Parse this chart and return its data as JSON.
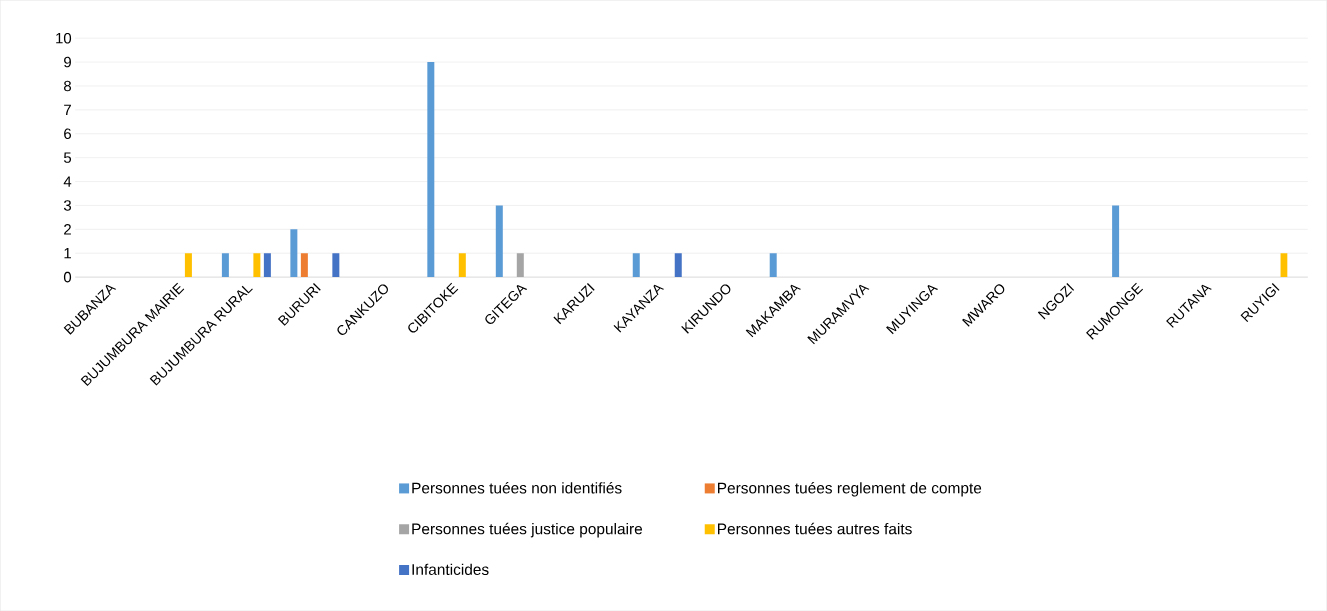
{
  "chart_data": {
    "type": "bar",
    "categories": [
      "BUBANZA",
      "BUJUMBURA MAIRIE",
      "BUJUMBURA RURAL",
      "BURURI",
      "CANKUZO",
      "CIBITOKE",
      "GITEGA",
      "KARUZI",
      "KAYANZA",
      "KIRUNDO",
      "MAKAMBA",
      "MURAMVYA",
      "MUYINGA",
      "MWARO",
      "NGOZI",
      "RUMONGE",
      "RUTANA",
      "RUYIGI"
    ],
    "series": [
      {
        "name": "Personnes tuées non identifiés",
        "color": "#5b9bd5",
        "values": [
          0,
          0,
          1,
          2,
          0,
          9,
          3,
          0,
          1,
          0,
          1,
          0,
          0,
          0,
          0,
          3,
          0,
          0
        ]
      },
      {
        "name": "Personnes tuées reglement de compte",
        "color": "#ed7d31",
        "values": [
          0,
          0,
          0,
          1,
          0,
          0,
          0,
          0,
          0,
          0,
          0,
          0,
          0,
          0,
          0,
          0,
          0,
          0
        ]
      },
      {
        "name": "Personnes tuées justice populaire",
        "color": "#a5a5a5",
        "values": [
          0,
          0,
          0,
          0,
          0,
          0,
          1,
          0,
          0,
          0,
          0,
          0,
          0,
          0,
          0,
          0,
          0,
          0
        ]
      },
      {
        "name": "Personnes tuées autres faits",
        "color": "#ffc000",
        "values": [
          0,
          1,
          1,
          0,
          0,
          1,
          0,
          0,
          0,
          0,
          0,
          0,
          0,
          0,
          0,
          0,
          0,
          1
        ]
      },
      {
        "name": "Infanticides",
        "color": "#4472c4",
        "values": [
          0,
          0,
          1,
          1,
          0,
          0,
          0,
          0,
          1,
          0,
          0,
          0,
          0,
          0,
          0,
          0,
          0,
          0
        ]
      }
    ],
    "ylim": [
      0,
      10
    ],
    "yticks": [
      0,
      1,
      2,
      3,
      4,
      5,
      6,
      7,
      8,
      9,
      10
    ],
    "grid": "y",
    "legend": "bottom"
  }
}
